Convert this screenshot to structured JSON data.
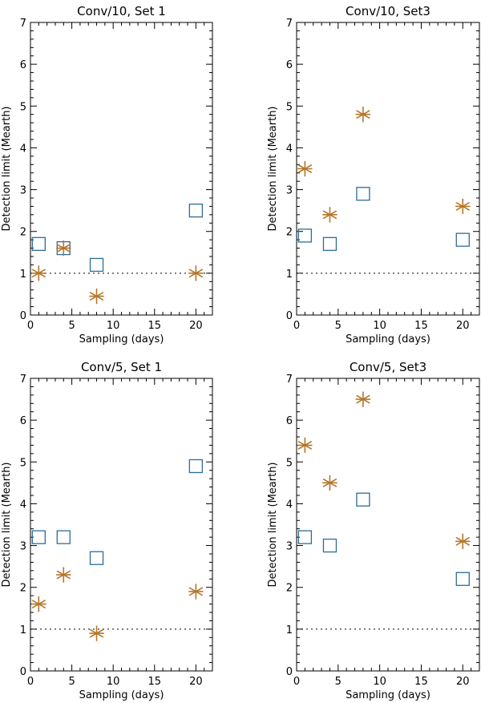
{
  "chart_data": [
    {
      "type": "scatter",
      "title": "Conv/10, Set 1",
      "xlabel": "Sampling (days)",
      "ylabel": "Detection limit (Mearth)",
      "xlim": [
        0,
        22
      ],
      "ylim": [
        0,
        7
      ],
      "xticks": [
        0,
        5,
        10,
        15,
        20
      ],
      "yticks": [
        0,
        1,
        2,
        3,
        4,
        5,
        6,
        7
      ],
      "reference_line": {
        "y": 1,
        "style": "dotted"
      },
      "series": [
        {
          "name": "squares",
          "marker": "square",
          "color": "#2e6c99",
          "x": [
            1,
            4,
            8,
            20
          ],
          "y": [
            1.7,
            1.6,
            1.2,
            2.5
          ]
        },
        {
          "name": "asterisks",
          "marker": "asterisk",
          "color": "#b5762a",
          "x": [
            1,
            4,
            8,
            20
          ],
          "y": [
            1.0,
            1.6,
            0.45,
            1.0
          ]
        }
      ]
    },
    {
      "type": "scatter",
      "title": "Conv/10, Set3",
      "xlabel": "Sampling (days)",
      "ylabel": "Detection limit (Mearth)",
      "xlim": [
        0,
        22
      ],
      "ylim": [
        0,
        7
      ],
      "xticks": [
        0,
        5,
        10,
        15,
        20
      ],
      "yticks": [
        0,
        1,
        2,
        3,
        4,
        5,
        6,
        7
      ],
      "reference_line": {
        "y": 1,
        "style": "dotted"
      },
      "series": [
        {
          "name": "squares",
          "marker": "square",
          "color": "#2e6c99",
          "x": [
            1,
            4,
            8,
            20
          ],
          "y": [
            1.9,
            1.7,
            2.9,
            1.8
          ]
        },
        {
          "name": "asterisks",
          "marker": "asterisk",
          "color": "#b5762a",
          "x": [
            1,
            4,
            8,
            20
          ],
          "y": [
            3.5,
            2.4,
            4.8,
            2.6
          ]
        }
      ]
    },
    {
      "type": "scatter",
      "title": "Conv/5, Set 1",
      "xlabel": "Sampling (days)",
      "ylabel": "Detection limit (Mearth)",
      "xlim": [
        0,
        22
      ],
      "ylim": [
        0,
        7
      ],
      "xticks": [
        0,
        5,
        10,
        15,
        20
      ],
      "yticks": [
        0,
        1,
        2,
        3,
        4,
        5,
        6,
        7
      ],
      "reference_line": {
        "y": 1,
        "style": "dotted"
      },
      "series": [
        {
          "name": "squares",
          "marker": "square",
          "color": "#2e6c99",
          "x": [
            1,
            4,
            8,
            20
          ],
          "y": [
            3.2,
            3.2,
            2.7,
            4.9
          ]
        },
        {
          "name": "asterisks",
          "marker": "asterisk",
          "color": "#b5762a",
          "x": [
            1,
            4,
            8,
            20
          ],
          "y": [
            1.6,
            2.3,
            0.9,
            1.9
          ]
        }
      ]
    },
    {
      "type": "scatter",
      "title": "Conv/5, Set3",
      "xlabel": "Sampling (days)",
      "ylabel": "Detection limit (Mearth)",
      "xlim": [
        0,
        22
      ],
      "ylim": [
        0,
        7
      ],
      "xticks": [
        0,
        5,
        10,
        15,
        20
      ],
      "yticks": [
        0,
        1,
        2,
        3,
        4,
        5,
        6,
        7
      ],
      "reference_line": {
        "y": 1,
        "style": "dotted"
      },
      "series": [
        {
          "name": "squares",
          "marker": "square",
          "color": "#2e6c99",
          "x": [
            1,
            4,
            8,
            20
          ],
          "y": [
            3.2,
            3.0,
            4.1,
            2.2
          ]
        },
        {
          "name": "asterisks",
          "marker": "asterisk",
          "color": "#b5762a",
          "x": [
            1,
            4,
            8,
            20
          ],
          "y": [
            5.4,
            4.5,
            6.5,
            3.1
          ]
        }
      ]
    }
  ]
}
